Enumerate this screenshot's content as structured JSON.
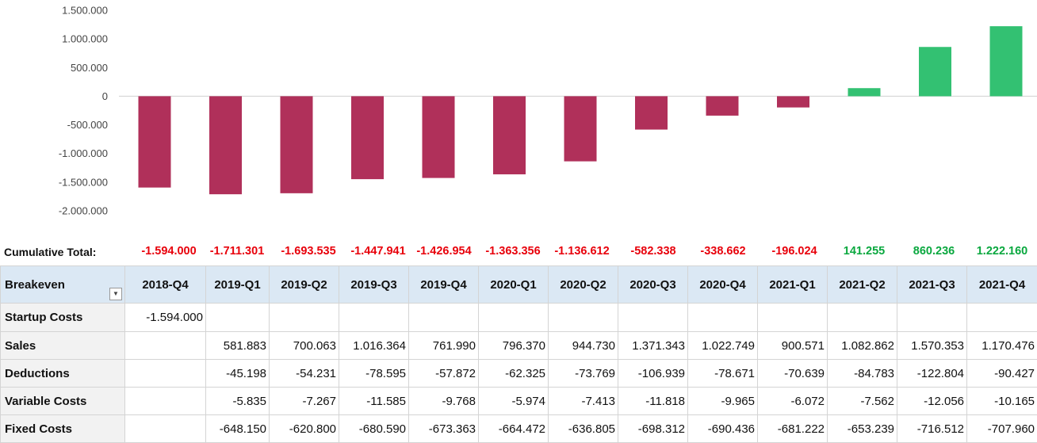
{
  "chart_data": {
    "type": "bar",
    "categories": [
      "2018-Q4",
      "2019-Q1",
      "2019-Q2",
      "2019-Q3",
      "2019-Q4",
      "2020-Q1",
      "2020-Q2",
      "2020-Q3",
      "2020-Q4",
      "2021-Q1",
      "2021-Q2",
      "2021-Q3",
      "2021-Q4"
    ],
    "values": [
      -1594000,
      -1711301,
      -1693535,
      -1447941,
      -1426954,
      -1363356,
      -1136612,
      -582338,
      -338662,
      -196024,
      141255,
      860236,
      1222160
    ],
    "yticks": [
      "1.500.000",
      "1.000.000",
      "500.000",
      "0",
      "-500.000",
      "-1.000.000",
      "-1.500.000",
      "-2.000.000"
    ],
    "ytick_values": [
      1500000,
      1000000,
      500000,
      0,
      -500000,
      -1000000,
      -1500000,
      -2000000
    ],
    "ylim": [
      -2000000,
      1500000
    ],
    "grid": false,
    "colors": {
      "negative": "#b0305a",
      "positive": "#33c172"
    }
  },
  "cumulative": {
    "label": "Cumulative Total:",
    "values": [
      "-1.594.000",
      "-1.711.301",
      "-1.693.535",
      "-1.447.941",
      "-1.426.954",
      "-1.363.356",
      "-1.136.612",
      "-582.338",
      "-338.662",
      "-196.024",
      "141.255",
      "860.236",
      "1.222.160"
    ]
  },
  "table": {
    "header_label": "Breakeven",
    "columns": [
      "2018-Q4",
      "2019-Q1",
      "2019-Q2",
      "2019-Q3",
      "2019-Q4",
      "2020-Q1",
      "2020-Q2",
      "2020-Q3",
      "2020-Q4",
      "2021-Q1",
      "2021-Q2",
      "2021-Q3",
      "2021-Q4"
    ],
    "rows": [
      {
        "label": "Startup Costs",
        "cells": [
          "-1.594.000",
          "",
          "",
          "",
          "",
          "",
          "",
          "",
          "",
          "",
          "",
          "",
          ""
        ]
      },
      {
        "label": "Sales",
        "cells": [
          "",
          "581.883",
          "700.063",
          "1.016.364",
          "761.990",
          "796.370",
          "944.730",
          "1.371.343",
          "1.022.749",
          "900.571",
          "1.082.862",
          "1.570.353",
          "1.170.476"
        ]
      },
      {
        "label": "Deductions",
        "cells": [
          "",
          "-45.198",
          "-54.231",
          "-78.595",
          "-57.872",
          "-62.325",
          "-73.769",
          "-106.939",
          "-78.671",
          "-70.639",
          "-84.783",
          "-122.804",
          "-90.427"
        ]
      },
      {
        "label": "Variable Costs",
        "cells": [
          "",
          "-5.835",
          "-7.267",
          "-11.585",
          "-9.768",
          "-5.974",
          "-7.413",
          "-11.818",
          "-9.965",
          "-6.072",
          "-7.562",
          "-12.056",
          "-10.165"
        ]
      },
      {
        "label": "Fixed Costs",
        "cells": [
          "",
          "-648.150",
          "-620.800",
          "-680.590",
          "-673.363",
          "-664.472",
          "-636.805",
          "-698.312",
          "-690.436",
          "-681.222",
          "-653.239",
          "-716.512",
          "-707.960"
        ]
      }
    ]
  }
}
